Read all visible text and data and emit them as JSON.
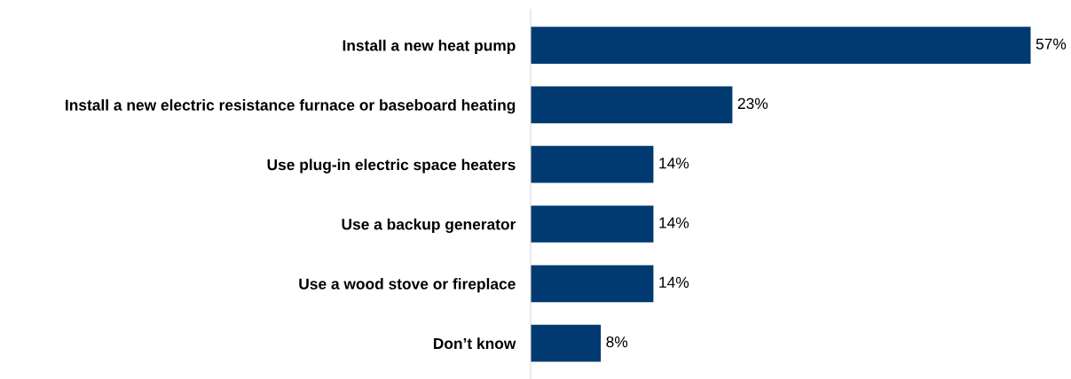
{
  "chart_data": {
    "type": "bar",
    "orientation": "horizontal",
    "categories": [
      "Install a new heat pump",
      "Install a new electric resistance furnace or baseboard heating",
      "Use plug-in electric space heaters",
      "Use a backup generator",
      "Use a wood stove or fireplace",
      "Don’t know"
    ],
    "values": [
      57,
      23,
      14,
      14,
      14,
      8
    ],
    "value_labels": [
      "57%",
      "23%",
      "14%",
      "14%",
      "14%",
      "8%"
    ],
    "color": "#003a70",
    "tick_labels": "y",
    "grid": false,
    "legend": false
  }
}
